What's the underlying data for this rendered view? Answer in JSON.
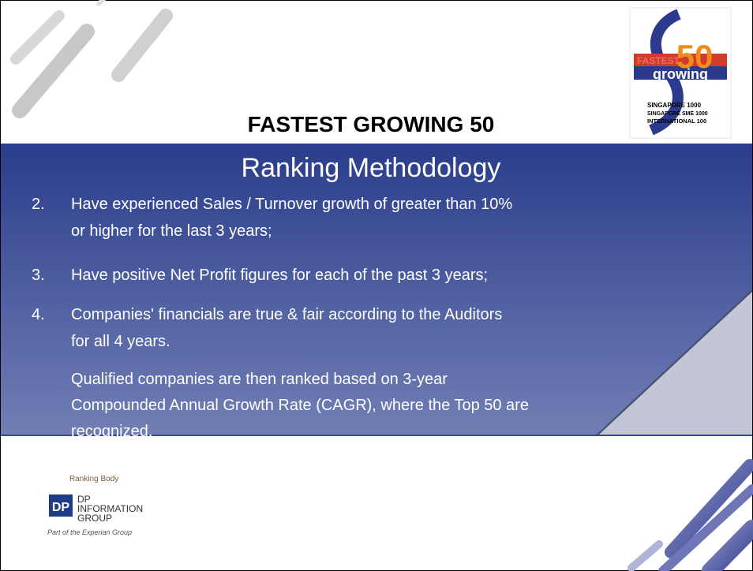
{
  "slide": {
    "title": "FASTEST GROWING 50",
    "subtitle": "Ranking Methodology",
    "items": [
      {
        "number": "2.",
        "lines": [
          "Have experienced Sales / Turnover growth of greater than 10%",
          "or higher for the last 3 years;"
        ]
      },
      {
        "number": "3.",
        "lines": [
          "Have positive Net Profit figures for each of the past 3 years;"
        ]
      },
      {
        "number": "4.",
        "lines": [
          "Companies' financials are true & fair according to the Auditors",
          "for all 4 years."
        ]
      }
    ],
    "note": [
      "Qualified companies are then ranked based on 3-year",
      "Compounded Annual Growth Rate (CAGR), where the Top 50 are",
      "recognized."
    ],
    "logo": {
      "word1": "FASTEST",
      "word2": "growing",
      "number": "50",
      "lines": [
        "SINGAPORE 1000",
        "SINGAPORE SME 1000",
        "INTERNATIONAL 100"
      ]
    },
    "footer": {
      "caption": "Ranking Body",
      "mark": "DP",
      "company": [
        "DP",
        "INFORMATION",
        "GROUP"
      ],
      "parent": "Part of the Experian Group"
    }
  }
}
